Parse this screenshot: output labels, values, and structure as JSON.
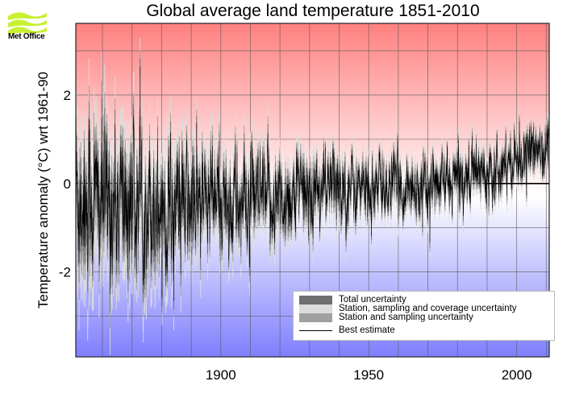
{
  "logo": {
    "icon": "met-office-waves-icon",
    "text": "Met Office",
    "color": "#c8f032"
  },
  "chart_data": {
    "type": "line",
    "title": "Global average land temperature 1851-2010",
    "xlabel": "",
    "ylabel": "Temperature anomaly (°C) wrt 1961-90",
    "xlim": [
      1851,
      2011
    ],
    "ylim": [
      -3.92,
      3.62
    ],
    "x_ticks": [
      1900,
      1950,
      2000
    ],
    "x_tick_labels": [
      "1900",
      "1950",
      "2000"
    ],
    "y_ticks": [
      2,
      0,
      -2
    ],
    "y_tick_labels": [
      "2",
      "0",
      "-2"
    ],
    "x_gridlines_every_years": 10,
    "y_gridlines": [
      3,
      2,
      1,
      0,
      -1,
      -2,
      -3
    ],
    "grid": true,
    "resolution": "monthly",
    "background": {
      "warm_color": "#ff8080",
      "cool_color": "#7f7fff",
      "neutral_color": "#ffffff"
    },
    "trend_anchor_years": [
      1851,
      1860,
      1870,
      1880,
      1890,
      1900,
      1910,
      1920,
      1930,
      1940,
      1950,
      1960,
      1970,
      1980,
      1990,
      2000,
      2010
    ],
    "trend_anchor_values": [
      -0.25,
      -0.45,
      -0.45,
      -0.45,
      -0.55,
      -0.4,
      -0.5,
      -0.35,
      -0.2,
      -0.05,
      -0.15,
      -0.05,
      -0.1,
      0.1,
      0.35,
      0.6,
      0.85
    ],
    "monthly_noise_sd_anchor_years": [
      1851,
      1880,
      1900,
      1950,
      2010
    ],
    "monthly_noise_sd_values": [
      0.9,
      0.75,
      0.6,
      0.38,
      0.3
    ],
    "uncertainty_halfwidth_anchor_years": [
      1851,
      1880,
      1900,
      1950,
      2010
    ],
    "uncertainty_halfwidth_values": [
      1.1,
      0.8,
      0.55,
      0.3,
      0.22
    ],
    "series": [
      {
        "name": "Total uncertainty",
        "color": "#6e6e6e",
        "kind": "band"
      },
      {
        "name": "Station, sampling and coverage uncertainty",
        "color": "#dcdcdc",
        "kind": "band"
      },
      {
        "name": "Station and sampling uncertainty",
        "color": "#a0a0a0",
        "kind": "band"
      },
      {
        "name": "Best estimate",
        "color": "#000000",
        "kind": "line"
      }
    ],
    "zero_line": {
      "value": 0,
      "style_before_1990": "dashed",
      "style_after_1990": "solid"
    },
    "legend": {
      "placement": "bottom-right"
    }
  }
}
